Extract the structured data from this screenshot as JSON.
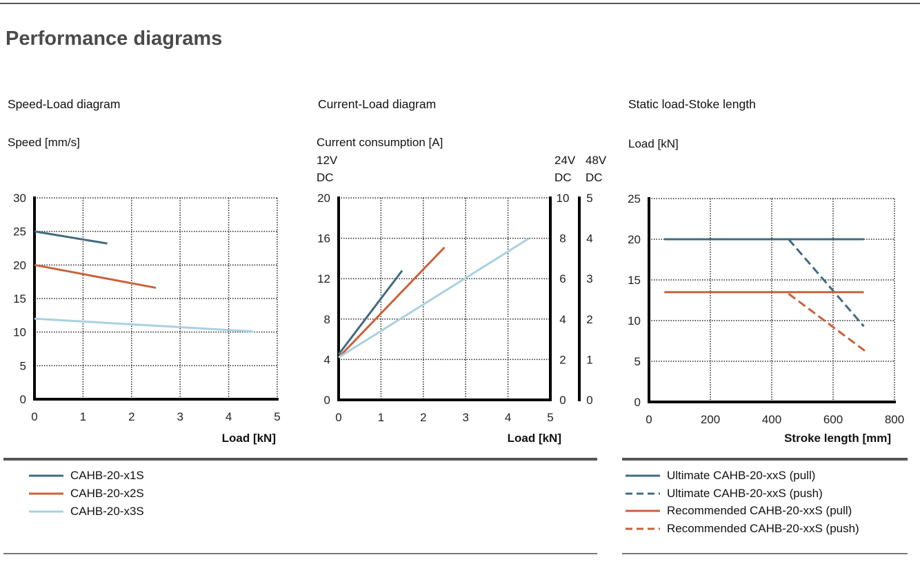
{
  "page_title": "Performance diagrams",
  "colors": {
    "x1S": "#3f6b7f",
    "x2S": "#c8623a",
    "x3S": "#a9d0e0"
  },
  "chart_data": [
    {
      "type": "line",
      "title": "Speed-Load diagram",
      "ylabel": "Speed [mm/s]",
      "xlabel": "Load [kN]",
      "xlim": [
        0,
        5
      ],
      "ylim": [
        0,
        30
      ],
      "xticks": [
        "0",
        "1",
        "2",
        "3",
        "4",
        "5"
      ],
      "yticks": [
        "0",
        "5",
        "10",
        "15",
        "20",
        "25",
        "30"
      ],
      "grid": true,
      "series": [
        {
          "name": "CAHB-20-x1S",
          "color": "#3f6b7f",
          "dash": false,
          "x": [
            0,
            1.5
          ],
          "y": [
            25,
            23.2
          ]
        },
        {
          "name": "CAHB-20-x2S",
          "color": "#c8623a",
          "dash": false,
          "x": [
            0,
            2.5
          ],
          "y": [
            20,
            16.6
          ]
        },
        {
          "name": "CAHB-20-x3S",
          "color": "#a9d0e0",
          "dash": false,
          "x": [
            0,
            4.5
          ],
          "y": [
            12,
            10.1
          ]
        }
      ]
    },
    {
      "type": "line",
      "title": "Current-Load diagram",
      "ylabel": "Current consumption [A]",
      "xlabel": "Load [kN]",
      "xlim": [
        0,
        5
      ],
      "ylim": [
        0,
        20
      ],
      "xticks": [
        "0",
        "1",
        "2",
        "3",
        "4",
        "5"
      ],
      "yticks": [
        "0",
        "4",
        "8",
        "12",
        "16",
        "20"
      ],
      "y2_label": [
        "24V",
        "DC"
      ],
      "y2ticks": [
        "0",
        "2",
        "4",
        "6",
        "8",
        "10"
      ],
      "y3_label": [
        "48V",
        "DC"
      ],
      "y3ticks": [
        "0",
        "1",
        "2",
        "3",
        "4",
        "5"
      ],
      "y1_label": [
        "12V",
        "DC"
      ],
      "grid": true,
      "series": [
        {
          "name": "CAHB-20-x1S",
          "color": "#3f6b7f",
          "dash": false,
          "x": [
            0,
            1.5
          ],
          "y": [
            4.5,
            12.8
          ]
        },
        {
          "name": "CAHB-20-x2S",
          "color": "#c8623a",
          "dash": false,
          "x": [
            0,
            2.5
          ],
          "y": [
            4.2,
            15.1
          ]
        },
        {
          "name": "CAHB-20-x3S",
          "color": "#a9d0e0",
          "dash": false,
          "x": [
            0,
            4.5
          ],
          "y": [
            4.2,
            16
          ]
        }
      ]
    },
    {
      "type": "line",
      "title": "Static load-Stoke length",
      "ylabel": "Load [kN]",
      "xlabel": "Stroke length [mm]",
      "xlim": [
        0,
        800
      ],
      "ylim": [
        0,
        25
      ],
      "xticks": [
        "0",
        "200",
        "400",
        "600",
        "800"
      ],
      "yticks": [
        "0",
        "5",
        "10",
        "15",
        "20",
        "25"
      ],
      "grid": true,
      "series": [
        {
          "name": "Ultimate CAHB-20-xxS (pull)",
          "color": "#3f6b7f",
          "dash": false,
          "x": [
            50,
            700
          ],
          "y": [
            20,
            20
          ]
        },
        {
          "name": "Ultimate CAHB-20-xxS (push)",
          "color": "#3f6b7f",
          "dash": true,
          "x": [
            455,
            700
          ],
          "y": [
            20,
            9.3
          ]
        },
        {
          "name": "Recommended CAHB-20-xxS (pull)",
          "color": "#c8623a",
          "dash": false,
          "x": [
            50,
            700
          ],
          "y": [
            13.5,
            13.5
          ]
        },
        {
          "name": "Recommended CAHB-20-xxS (push)",
          "color": "#c8623a",
          "dash": true,
          "x": [
            455,
            710
          ],
          "y": [
            13.3,
            6.1
          ]
        }
      ]
    }
  ]
}
